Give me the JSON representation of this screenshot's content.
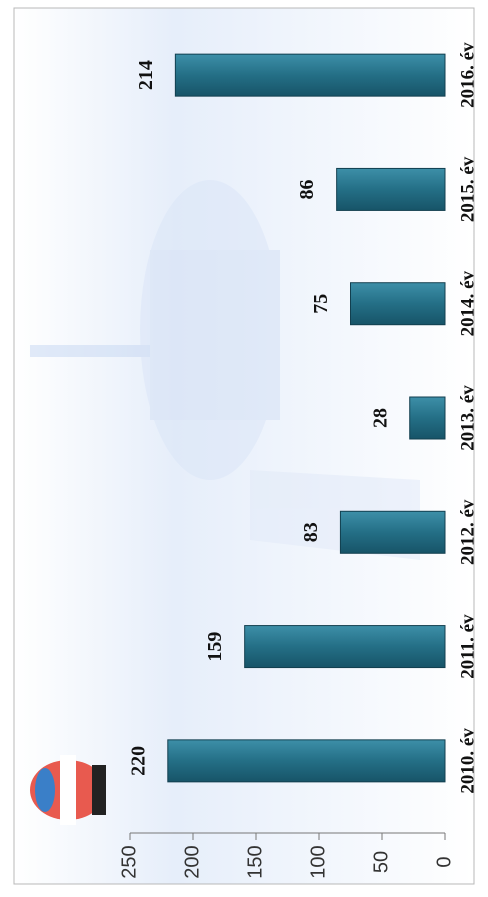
{
  "chart_data": {
    "type": "bar",
    "categories": [
      "2010. év",
      "2011. év",
      "2012. év",
      "2013. év",
      "2014. év",
      "2015. év",
      "2016. év"
    ],
    "values": [
      220,
      159,
      83,
      28,
      75,
      86,
      214
    ],
    "color": "#246f86",
    "ylim": [
      0,
      250
    ],
    "yticks": [
      0,
      50,
      100,
      150,
      200,
      250
    ]
  }
}
